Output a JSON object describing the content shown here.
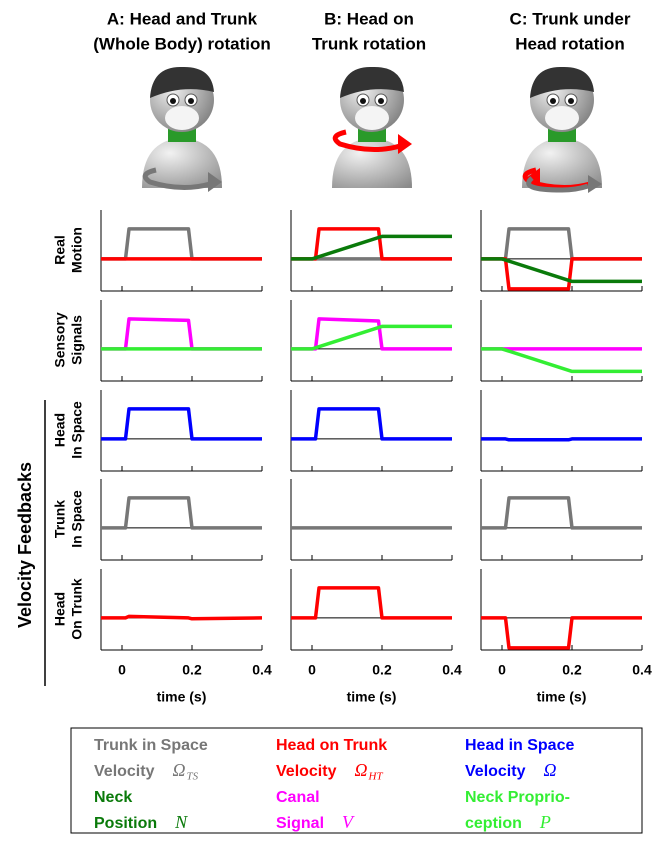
{
  "column_titles": [
    [
      "A: Head and Trunk",
      "(Whole Body) rotation"
    ],
    [
      "B: Head on",
      "Trunk rotation"
    ],
    [
      "C: Trunk under",
      "Head rotation"
    ]
  ],
  "row_labels": [
    [
      "Real",
      "Motion"
    ],
    [
      "Sensory",
      "Signals"
    ],
    [
      "Head",
      "In Space"
    ],
    [
      "Trunk",
      "In Space"
    ],
    [
      "Head",
      "On Trunk"
    ]
  ],
  "group_label": "Velocity Feedbacks",
  "chart_data": [
    {
      "type": "line",
      "xlim": [
        -0.06,
        0.4
      ],
      "ylim": [
        -1.07,
        1.63
      ],
      "xticks": [
        0,
        0.2,
        0.4
      ],
      "series": [
        {
          "color": "#777777",
          "x": [
            -0.06,
            0.01,
            0.02,
            0.19,
            0.2,
            0.4
          ],
          "values": [
            0,
            0,
            1,
            1,
            0,
            0
          ]
        },
        {
          "color": "#ff0000",
          "x": [
            -0.06,
            0.4
          ],
          "values": [
            0,
            0
          ]
        }
      ]
    },
    {
      "type": "line",
      "xlim": [
        -0.06,
        0.4
      ],
      "ylim": [
        -1.07,
        1.63
      ],
      "xticks": [
        0,
        0.2,
        0.4
      ],
      "series": [
        {
          "color": "#777777",
          "x": [
            -0.06,
            0.4
          ],
          "values": [
            0,
            0
          ]
        },
        {
          "color": "#ff0000",
          "x": [
            -0.06,
            0.01,
            0.02,
            0.19,
            0.2,
            0.4
          ],
          "values": [
            0,
            0,
            1,
            1,
            0,
            0
          ]
        },
        {
          "color": "#0a7a0a",
          "x": [
            -0.06,
            0,
            0.2,
            0.4
          ],
          "values": [
            0,
            0,
            0.75,
            0.75
          ]
        }
      ]
    },
    {
      "type": "line",
      "xlim": [
        -0.06,
        0.4
      ],
      "ylim": [
        -1.07,
        1.63
      ],
      "xticks": [
        0,
        0.2,
        0.4
      ],
      "series": [
        {
          "color": "#777777",
          "x": [
            -0.06,
            0.01,
            0.02,
            0.19,
            0.2,
            0.4
          ],
          "values": [
            0,
            0,
            1,
            1,
            0,
            0
          ]
        },
        {
          "color": "#ff0000",
          "x": [
            -0.06,
            0.01,
            0.02,
            0.19,
            0.2,
            0.4
          ],
          "values": [
            0,
            0,
            -1,
            -1,
            0,
            0
          ]
        },
        {
          "color": "#0a7a0a",
          "x": [
            -0.06,
            0,
            0.2,
            0.4
          ],
          "values": [
            0,
            0,
            -0.75,
            -0.75
          ]
        }
      ]
    },
    {
      "type": "line",
      "xlim": [
        -0.06,
        0.4
      ],
      "ylim": [
        -1.07,
        1.63
      ],
      "xticks": [
        0,
        0.2,
        0.4
      ],
      "series": [
        {
          "color": "#ff00ff",
          "x": [
            -0.06,
            0.01,
            0.02,
            0.19,
            0.2,
            0.4
          ],
          "values": [
            0,
            0,
            1,
            0.95,
            0,
            0
          ]
        },
        {
          "color": "#33ee33",
          "x": [
            -0.06,
            0.4
          ],
          "values": [
            0,
            0
          ]
        }
      ]
    },
    {
      "type": "line",
      "xlim": [
        -0.06,
        0.4
      ],
      "ylim": [
        -1.07,
        1.63
      ],
      "xticks": [
        0,
        0.2,
        0.4
      ],
      "series": [
        {
          "color": "#ff00ff",
          "x": [
            -0.06,
            0.01,
            0.02,
            0.19,
            0.2,
            0.4
          ],
          "values": [
            0,
            0,
            1,
            0.93,
            0,
            0
          ]
        },
        {
          "color": "#33ee33",
          "x": [
            -0.06,
            0,
            0.2,
            0.4
          ],
          "values": [
            0,
            0,
            0.75,
            0.75
          ]
        }
      ]
    },
    {
      "type": "line",
      "xlim": [
        -0.06,
        0.4
      ],
      "ylim": [
        -1.07,
        1.63
      ],
      "xticks": [
        0,
        0.2,
        0.4
      ],
      "series": [
        {
          "color": "#ff00ff",
          "x": [
            -0.06,
            0.4
          ],
          "values": [
            0,
            0
          ]
        },
        {
          "color": "#33ee33",
          "x": [
            -0.06,
            0,
            0.2,
            0.4
          ],
          "values": [
            0,
            0,
            -0.75,
            -0.75
          ]
        }
      ]
    },
    {
      "type": "line",
      "xlim": [
        -0.06,
        0.4
      ],
      "ylim": [
        -1.07,
        1.63
      ],
      "xticks": [
        0,
        0.2,
        0.4
      ],
      "series": [
        {
          "color": "#0000ff",
          "x": [
            -0.06,
            0.01,
            0.02,
            0.19,
            0.2,
            0.4
          ],
          "values": [
            0,
            0,
            1,
            1,
            0,
            0
          ]
        }
      ]
    },
    {
      "type": "line",
      "xlim": [
        -0.06,
        0.4
      ],
      "ylim": [
        -1.07,
        1.63
      ],
      "xticks": [
        0,
        0.2,
        0.4
      ],
      "series": [
        {
          "color": "#0000ff",
          "x": [
            -0.06,
            0.01,
            0.02,
            0.19,
            0.2,
            0.4
          ],
          "values": [
            0,
            0,
            1,
            1,
            0,
            0
          ]
        }
      ]
    },
    {
      "type": "line",
      "xlim": [
        -0.06,
        0.4
      ],
      "ylim": [
        -1.07,
        1.63
      ],
      "xticks": [
        0,
        0.2,
        0.4
      ],
      "series": [
        {
          "color": "#0000ff",
          "x": [
            -0.06,
            0.01,
            0.02,
            0.19,
            0.2,
            0.4
          ],
          "values": [
            0,
            0,
            -0.03,
            -0.03,
            0,
            0
          ]
        }
      ]
    },
    {
      "type": "line",
      "xlim": [
        -0.06,
        0.4
      ],
      "ylim": [
        -1.07,
        1.63
      ],
      "xticks": [
        0,
        0.2,
        0.4
      ],
      "series": [
        {
          "color": "#777777",
          "x": [
            -0.06,
            0.01,
            0.02,
            0.19,
            0.2,
            0.4
          ],
          "values": [
            0,
            0,
            1,
            1,
            0,
            0
          ]
        }
      ]
    },
    {
      "type": "line",
      "xlim": [
        -0.06,
        0.4
      ],
      "ylim": [
        -1.07,
        1.63
      ],
      "xticks": [
        0,
        0.2,
        0.4
      ],
      "series": [
        {
          "color": "#777777",
          "x": [
            -0.06,
            0.4
          ],
          "values": [
            0,
            0
          ]
        }
      ]
    },
    {
      "type": "line",
      "xlim": [
        -0.06,
        0.4
      ],
      "ylim": [
        -1.07,
        1.63
      ],
      "xticks": [
        0,
        0.2,
        0.4
      ],
      "series": [
        {
          "color": "#777777",
          "x": [
            -0.06,
            0.01,
            0.02,
            0.19,
            0.2,
            0.4
          ],
          "values": [
            0,
            0,
            1,
            1,
            0,
            0
          ]
        }
      ]
    },
    {
      "type": "line",
      "xlim": [
        -0.06,
        0.4
      ],
      "ylim": [
        -1.07,
        1.63
      ],
      "xticks": [
        0,
        0.2,
        0.4
      ],
      "xlabel": "time (s)",
      "series": [
        {
          "color": "#ff0000",
          "x": [
            -0.06,
            0.01,
            0.02,
            0.19,
            0.2,
            0.4
          ],
          "values": [
            0,
            0,
            0.05,
            0,
            -0.03,
            0
          ]
        }
      ]
    },
    {
      "type": "line",
      "xlim": [
        -0.06,
        0.4
      ],
      "ylim": [
        -1.07,
        1.63
      ],
      "xticks": [
        0,
        0.2,
        0.4
      ],
      "xlabel": "time (s)",
      "series": [
        {
          "color": "#ff0000",
          "x": [
            -0.06,
            0.01,
            0.02,
            0.19,
            0.2,
            0.4
          ],
          "values": [
            0,
            0,
            1,
            1,
            0,
            0
          ]
        }
      ]
    },
    {
      "type": "line",
      "xlim": [
        -0.06,
        0.4
      ],
      "ylim": [
        -1.07,
        1.63
      ],
      "xticks": [
        0,
        0.2,
        0.4
      ],
      "xlabel": "time (s)",
      "series": [
        {
          "color": "#ff0000",
          "x": [
            -0.06,
            0.01,
            0.02,
            0.19,
            0.2,
            0.4
          ],
          "values": [
            0,
            0,
            -1,
            -1,
            0,
            0
          ]
        }
      ]
    }
  ],
  "legend": [
    {
      "lines": [
        "Trunk in Space",
        "Velocity"
      ],
      "symbol": "Ω",
      "subscript": "TS",
      "color": "#777777"
    },
    {
      "lines": [
        "Neck",
        "Position"
      ],
      "symbol": "N",
      "color": "#0a7a0a"
    },
    {
      "lines": [
        "Head on Trunk",
        "Velocity"
      ],
      "symbol": "Ω",
      "subscript": "HT",
      "color": "#ff0000"
    },
    {
      "lines": [
        "Canal",
        "Signal"
      ],
      "symbol": "V",
      "color": "#ff00ff"
    },
    {
      "lines": [
        "Head in Space",
        "Velocity"
      ],
      "symbol": "Ω",
      "color": "#0000ff"
    },
    {
      "lines": [
        "Neck Proprio-",
        "ception"
      ],
      "symbol": "P",
      "color": "#33ee33"
    }
  ]
}
